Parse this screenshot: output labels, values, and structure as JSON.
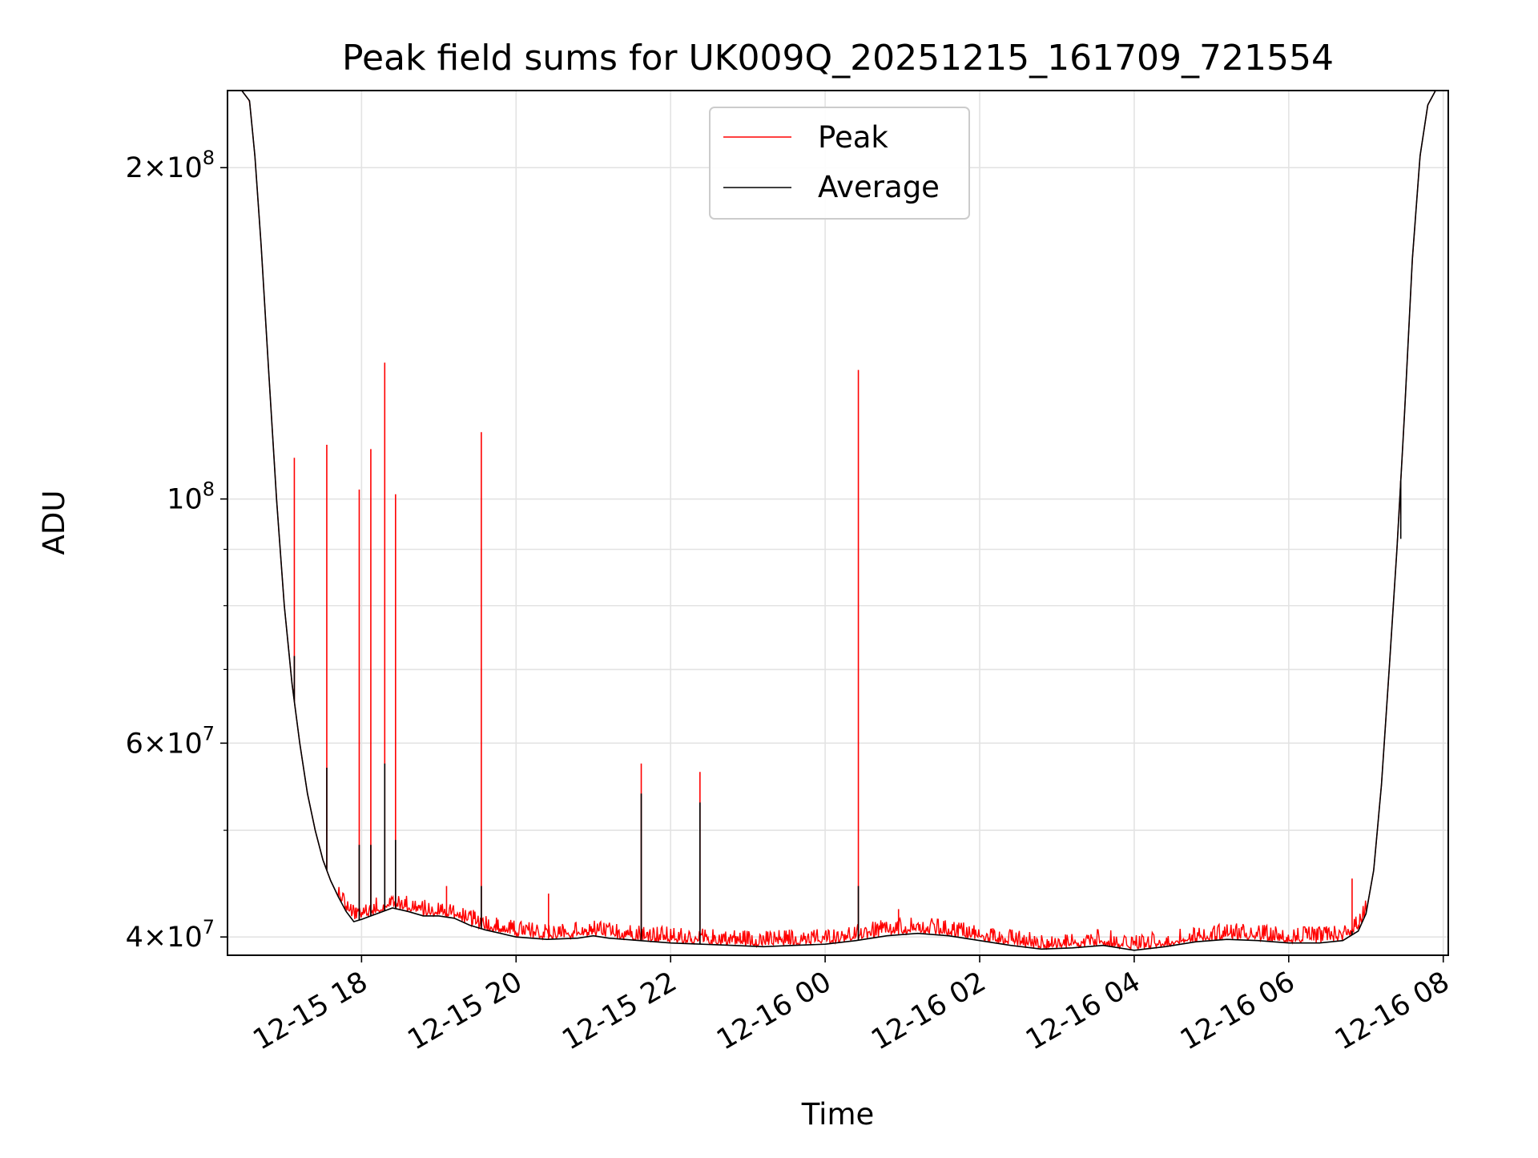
{
  "chart_data": {
    "type": "line",
    "title": "Peak field sums for UK009Q_20251215_161709_721554",
    "xlabel": "Time",
    "ylabel": "ADU",
    "yscale": "log",
    "grid": true,
    "legend_position": "upper-center",
    "x_unit": "hours since 12-15 00:00",
    "xlim": [
      16.265,
      32.065
    ],
    "ylim": [
      38500000,
      235000000
    ],
    "x_ticks": [
      {
        "value": 18,
        "label": "12-15 18"
      },
      {
        "value": 20,
        "label": "12-15 20"
      },
      {
        "value": 22,
        "label": "12-15 22"
      },
      {
        "value": 24,
        "label": "12-16 00"
      },
      {
        "value": 26,
        "label": "12-16 02"
      },
      {
        "value": 28,
        "label": "12-16 04"
      },
      {
        "value": 30,
        "label": "12-16 06"
      },
      {
        "value": 32,
        "label": "12-16 08"
      }
    ],
    "y_ticks": [
      {
        "value": 200000000,
        "mant": "2",
        "exp": "8"
      },
      {
        "value": 100000000,
        "mant": "",
        "exp": "8"
      },
      {
        "value": 60000000,
        "mant": "6",
        "exp": "7"
      },
      {
        "value": 40000000,
        "mant": "4",
        "exp": "7"
      }
    ],
    "y_minor_ticks": [
      50000000,
      70000000,
      80000000,
      90000000
    ],
    "series": [
      {
        "name": "Average",
        "color": "#000000",
        "points": [
          [
            16.45,
            235000000
          ],
          [
            16.55,
            230000000
          ],
          [
            16.62,
            205000000
          ],
          [
            16.7,
            170000000
          ],
          [
            16.8,
            130000000
          ],
          [
            16.9,
            100000000
          ],
          [
            17.0,
            80000000
          ],
          [
            17.1,
            68000000
          ],
          [
            17.2,
            60000000
          ],
          [
            17.3,
            54000000
          ],
          [
            17.4,
            50000000
          ],
          [
            17.5,
            47000000
          ],
          [
            17.6,
            45000000
          ],
          [
            17.7,
            43500000
          ],
          [
            17.8,
            42200000
          ],
          [
            17.9,
            41300000
          ],
          [
            18.0,
            41500000
          ],
          [
            18.2,
            42000000
          ],
          [
            18.4,
            42500000
          ],
          [
            18.6,
            42200000
          ],
          [
            18.8,
            41800000
          ],
          [
            19.0,
            41800000
          ],
          [
            19.2,
            41600000
          ],
          [
            19.4,
            41000000
          ],
          [
            19.6,
            40600000
          ],
          [
            19.8,
            40300000
          ],
          [
            20.0,
            40000000
          ],
          [
            20.4,
            39800000
          ],
          [
            20.8,
            39900000
          ],
          [
            21.0,
            40100000
          ],
          [
            21.2,
            39900000
          ],
          [
            21.6,
            39700000
          ],
          [
            22.0,
            39500000
          ],
          [
            22.4,
            39400000
          ],
          [
            22.8,
            39300000
          ],
          [
            23.2,
            39200000
          ],
          [
            23.6,
            39300000
          ],
          [
            24.0,
            39400000
          ],
          [
            24.4,
            39700000
          ],
          [
            24.8,
            40100000
          ],
          [
            25.2,
            40300000
          ],
          [
            25.6,
            40100000
          ],
          [
            26.0,
            39700000
          ],
          [
            26.4,
            39300000
          ],
          [
            26.8,
            39000000
          ],
          [
            27.2,
            39100000
          ],
          [
            27.6,
            39300000
          ],
          [
            28.0,
            38900000
          ],
          [
            28.4,
            39200000
          ],
          [
            28.8,
            39600000
          ],
          [
            29.2,
            39800000
          ],
          [
            29.6,
            39700000
          ],
          [
            30.0,
            39500000
          ],
          [
            30.4,
            39500000
          ],
          [
            30.7,
            39700000
          ],
          [
            30.9,
            40500000
          ],
          [
            31.0,
            42000000
          ],
          [
            31.1,
            46000000
          ],
          [
            31.2,
            55000000
          ],
          [
            31.3,
            70000000
          ],
          [
            31.4,
            90000000
          ],
          [
            31.5,
            120000000
          ],
          [
            31.6,
            165000000
          ],
          [
            31.7,
            205000000
          ],
          [
            31.8,
            228000000
          ],
          [
            31.9,
            235000000
          ]
        ],
        "spikes": [
          [
            17.13,
            72000000
          ],
          [
            17.55,
            57000000
          ],
          [
            17.97,
            48500000
          ],
          [
            18.12,
            48500000
          ],
          [
            18.3,
            57500000
          ],
          [
            18.44,
            49000000
          ],
          [
            19.55,
            44500000
          ],
          [
            21.62,
            54000000
          ],
          [
            22.38,
            53000000
          ],
          [
            24.43,
            44500000
          ],
          [
            30.82,
            40500000
          ],
          [
            31.45,
            92000000
          ]
        ]
      },
      {
        "name": "Peak",
        "color": "#ff0000",
        "spikes": [
          [
            17.13,
            109000000
          ],
          [
            17.55,
            112000000
          ],
          [
            17.97,
            102000000
          ],
          [
            18.12,
            111000000
          ],
          [
            18.3,
            133000000
          ],
          [
            18.44,
            101000000
          ],
          [
            19.1,
            44500000
          ],
          [
            19.55,
            115000000
          ],
          [
            20.42,
            43800000
          ],
          [
            21.62,
            57500000
          ],
          [
            22.38,
            56500000
          ],
          [
            24.43,
            131000000
          ],
          [
            24.95,
            42400000
          ],
          [
            30.82,
            45200000
          ],
          [
            31.45,
            96000000
          ]
        ]
      }
    ]
  }
}
